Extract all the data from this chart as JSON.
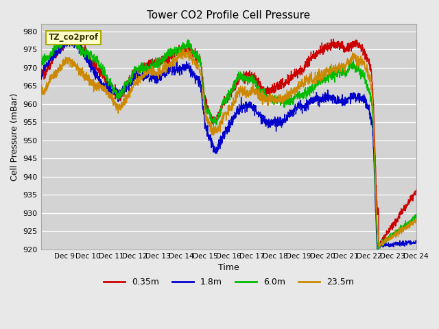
{
  "title": "Tower CO2 Profile Cell Pressure",
  "ylabel": "Cell Pressure (mBar)",
  "xlabel": "Time",
  "ylim": [
    920,
    982
  ],
  "yticks": [
    920,
    925,
    930,
    935,
    940,
    945,
    950,
    955,
    960,
    965,
    970,
    975,
    980
  ],
  "bg_color": "#e8e8e8",
  "plot_bg_color": "#d3d3d3",
  "series": [
    {
      "label": "0.35m",
      "color": "#cc0000",
      "lw": 1.0
    },
    {
      "label": "1.8m",
      "color": "#0000cc",
      "lw": 1.0
    },
    {
      "label": "6.0m",
      "color": "#00bb00",
      "lw": 1.0
    },
    {
      "label": "23.5m",
      "color": "#cc8800",
      "lw": 1.0
    }
  ],
  "legend_label": "TZ_co2prof",
  "legend_label_color": "#333300",
  "legend_box_facecolor": "#ffffcc",
  "legend_box_edgecolor": "#aaaa00",
  "xtick_labels": [
    "Dec 9",
    "Dec 10",
    "Dec 11",
    "Dec 12",
    "Dec 13",
    "Dec 14",
    "Dec 15",
    "Dec 16",
    "Dec 17",
    "Dec 18",
    "Dec 19",
    "Dec 20",
    "Dec 21",
    "Dec 22",
    "Dec 23",
    "Dec 24"
  ],
  "n_pts": 2000
}
